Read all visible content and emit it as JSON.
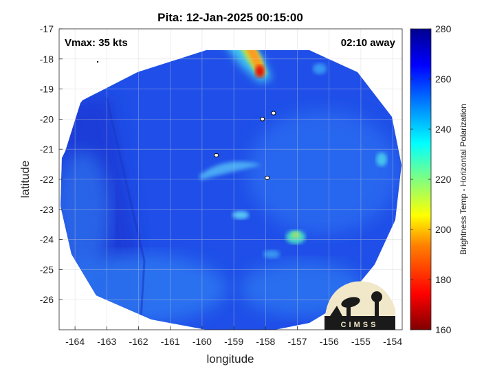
{
  "chart_data": {
    "type": "heatmap",
    "title": "Pita: 12-Jan-2025 00:15:00",
    "xlabel": "longitude",
    "ylabel": "latitude",
    "xlim": [
      -164.5,
      -153.7
    ],
    "ylim": [
      -27,
      -17
    ],
    "xticks": [
      "-164",
      "-163",
      "-162",
      "-161",
      "-160",
      "-159",
      "-158",
      "-157",
      "-156",
      "-155",
      "-154"
    ],
    "yticks": [
      "-17",
      "-18",
      "-19",
      "-20",
      "-21",
      "-22",
      "-23",
      "-24",
      "-25",
      "-26"
    ],
    "grid": true,
    "annotations": {
      "left": "Vmax: 35 kts",
      "right": "02:10 away"
    },
    "colorbar": {
      "label": "Brightness Temp - Horizontal Polarization",
      "min": 160,
      "max": 280,
      "ticks": [
        "160",
        "180",
        "200",
        "220",
        "240",
        "260",
        "280"
      ],
      "colormap": [
        "#800000",
        "#ff0000",
        "#ff8000",
        "#ffff00",
        "#80ff80",
        "#00ffff",
        "#0080ff",
        "#0000ff",
        "#00008f"
      ]
    },
    "features": [
      {
        "name": "cold-band",
        "lon": -158.1,
        "lat": -18.4,
        "min_tb": 170
      },
      {
        "name": "convection-east",
        "lon": -157.0,
        "lat": -23.8,
        "min_tb": 228
      },
      {
        "name": "convection-south",
        "lon": -158.6,
        "lat": -23.1,
        "min_tb": 238
      },
      {
        "name": "inner-curl",
        "lon": -159.6,
        "lat": -21.9,
        "min_tb": 236
      },
      {
        "name": "warm-west",
        "lon": -163.3,
        "lat": -20.6,
        "min_tb": 268
      }
    ],
    "islands": [
      {
        "lon": -159.55,
        "lat": -21.2
      },
      {
        "lon": -158.1,
        "lat": -20.0
      },
      {
        "lon": -157.75,
        "lat": -19.8
      },
      {
        "lon": -157.95,
        "lat": -21.95
      }
    ],
    "logo": {
      "text": "CIMSS"
    }
  }
}
